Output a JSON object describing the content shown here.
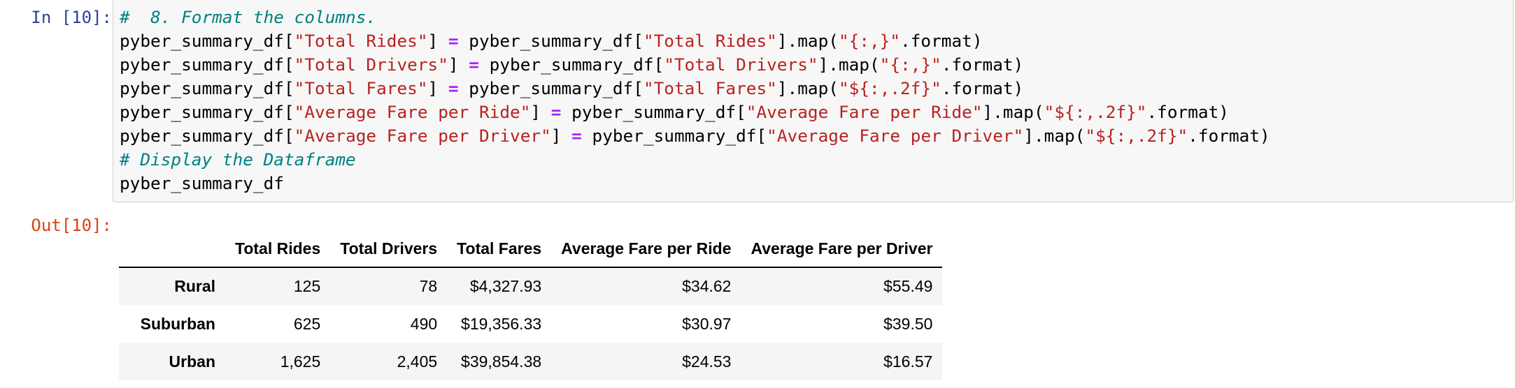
{
  "input_cell": {
    "prompt": "In [10]:",
    "lines": [
      [
        {
          "t": "cm",
          "v": "#  8. Format the columns."
        }
      ],
      [
        {
          "t": "n",
          "v": "pyber_summary_df["
        },
        {
          "t": "s",
          "v": "\"Total Rides\""
        },
        {
          "t": "n",
          "v": "] "
        },
        {
          "t": "o",
          "v": "="
        },
        {
          "t": "n",
          "v": " pyber_summary_df["
        },
        {
          "t": "s",
          "v": "\"Total Rides\""
        },
        {
          "t": "n",
          "v": "].map("
        },
        {
          "t": "s",
          "v": "\"{:,}\""
        },
        {
          "t": "n",
          "v": ".format)"
        }
      ],
      [
        {
          "t": "n",
          "v": "pyber_summary_df["
        },
        {
          "t": "s",
          "v": "\"Total Drivers\""
        },
        {
          "t": "n",
          "v": "] "
        },
        {
          "t": "o",
          "v": "="
        },
        {
          "t": "n",
          "v": " pyber_summary_df["
        },
        {
          "t": "s",
          "v": "\"Total Drivers\""
        },
        {
          "t": "n",
          "v": "].map("
        },
        {
          "t": "s",
          "v": "\"{:,}\""
        },
        {
          "t": "n",
          "v": ".format)"
        }
      ],
      [
        {
          "t": "n",
          "v": "pyber_summary_df["
        },
        {
          "t": "s",
          "v": "\"Total Fares\""
        },
        {
          "t": "n",
          "v": "] "
        },
        {
          "t": "o",
          "v": "="
        },
        {
          "t": "n",
          "v": " pyber_summary_df["
        },
        {
          "t": "s",
          "v": "\"Total Fares\""
        },
        {
          "t": "n",
          "v": "].map("
        },
        {
          "t": "s",
          "v": "\"${:,.2f}\""
        },
        {
          "t": "n",
          "v": ".format)"
        }
      ],
      [
        {
          "t": "n",
          "v": "pyber_summary_df["
        },
        {
          "t": "s",
          "v": "\"Average Fare per Ride\""
        },
        {
          "t": "n",
          "v": "] "
        },
        {
          "t": "o",
          "v": "="
        },
        {
          "t": "n",
          "v": " pyber_summary_df["
        },
        {
          "t": "s",
          "v": "\"Average Fare per Ride\""
        },
        {
          "t": "n",
          "v": "].map("
        },
        {
          "t": "s",
          "v": "\"${:,.2f}\""
        },
        {
          "t": "n",
          "v": ".format)"
        }
      ],
      [
        {
          "t": "n",
          "v": "pyber_summary_df["
        },
        {
          "t": "s",
          "v": "\"Average Fare per Driver\""
        },
        {
          "t": "n",
          "v": "] "
        },
        {
          "t": "o",
          "v": "="
        },
        {
          "t": "n",
          "v": " pyber_summary_df["
        },
        {
          "t": "s",
          "v": "\"Average Fare per Driver\""
        },
        {
          "t": "n",
          "v": "].map("
        },
        {
          "t": "s",
          "v": "\"${:,.2f}\""
        },
        {
          "t": "n",
          "v": ".format)"
        }
      ],
      [
        {
          "t": "cm",
          "v": "# Display the Dataframe"
        }
      ],
      [
        {
          "t": "n",
          "v": "pyber_summary_df"
        }
      ]
    ]
  },
  "output_cell": {
    "prompt": "Out[10]:",
    "table": {
      "columns": [
        "",
        "Total Rides",
        "Total Drivers",
        "Total Fares",
        "Average Fare per Ride",
        "Average Fare per Driver"
      ],
      "rows": [
        {
          "index": "Rural",
          "cells": [
            "125",
            "78",
            "$4,327.93",
            "$34.62",
            "$55.49"
          ]
        },
        {
          "index": "Suburban",
          "cells": [
            "625",
            "490",
            "$19,356.33",
            "$30.97",
            "$39.50"
          ]
        },
        {
          "index": "Urban",
          "cells": [
            "1,625",
            "2,405",
            "$39,854.38",
            "$24.53",
            "$16.57"
          ]
        }
      ]
    }
  },
  "colors": {
    "in_prompt": "#303f9f",
    "out_prompt": "#d84315",
    "comment": "#008080",
    "string": "#ba2121",
    "operator": "#aa22ff",
    "cell_bg": "#f7f7f7"
  }
}
